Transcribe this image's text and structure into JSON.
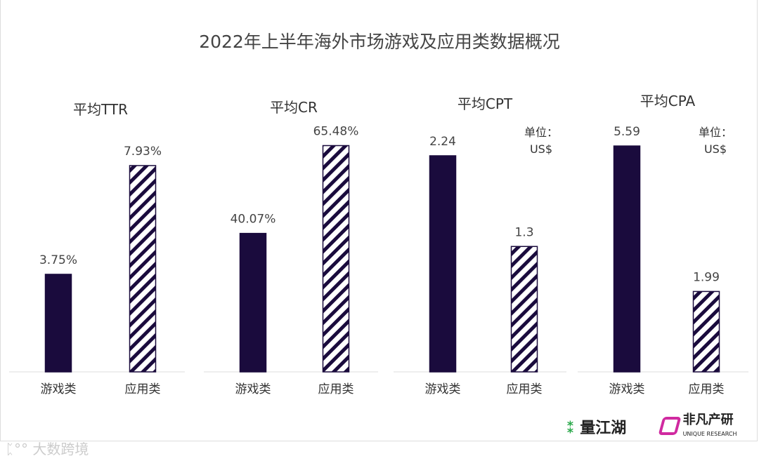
{
  "title": "2022年上半年海外市场游戏及应用类数据概况",
  "chart_data": [
    {
      "type": "bar",
      "title": "平均TTR",
      "categories": [
        "游戏类",
        "应用类"
      ],
      "values": [
        3.75,
        7.93
      ],
      "labels": [
        "3.75%",
        "7.93%"
      ],
      "unit": "",
      "ylim": [
        0,
        8.9
      ]
    },
    {
      "type": "bar",
      "title": "平均CR",
      "categories": [
        "游戏类",
        "应用类"
      ],
      "values": [
        40.07,
        65.48
      ],
      "labels": [
        "40.07%",
        "65.48%"
      ],
      "unit": "",
      "ylim": [
        0,
        67
      ]
    },
    {
      "type": "bar",
      "title": "平均CPT",
      "categories": [
        "游戏类",
        "应用类"
      ],
      "values": [
        2.24,
        1.3
      ],
      "labels": [
        "2.24",
        "1.3"
      ],
      "unit": [
        "单位：",
        "US$"
      ],
      "ylim": [
        0,
        2.4
      ]
    },
    {
      "type": "bar",
      "title": "平均CPA",
      "categories": [
        "游戏类",
        "应用类"
      ],
      "values": [
        5.59,
        1.99
      ],
      "labels": [
        "5.59",
        "1.99"
      ],
      "unit": [
        "单位：",
        "US$"
      ],
      "ylim": [
        0,
        5.73
      ]
    }
  ],
  "series_styles": {
    "游戏类": {
      "color": "#1a0b3d",
      "fill": "solid"
    },
    "应用类": {
      "color": "#1a0b3d",
      "fill": "diagonal-stripes"
    }
  },
  "logos": {
    "left": "量江湖",
    "right": "非凡产研",
    "right_sub": "UNIQUE RESEARCH",
    "watermark": "大数跨境"
  }
}
